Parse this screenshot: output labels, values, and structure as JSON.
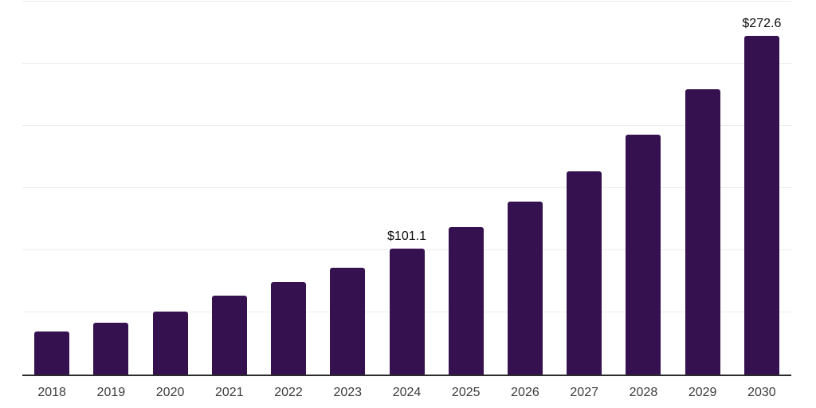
{
  "chart_data": {
    "type": "bar",
    "title": "",
    "xlabel": "",
    "ylabel": "",
    "categories": [
      "2018",
      "2019",
      "2020",
      "2021",
      "2022",
      "2023",
      "2024",
      "2025",
      "2026",
      "2027",
      "2028",
      "2029",
      "2030"
    ],
    "values": [
      34.6,
      41.6,
      50.6,
      63.4,
      74.3,
      85.8,
      101.1,
      118.5,
      139.0,
      163.3,
      192.8,
      229.3,
      272.6
    ],
    "data_labels": {
      "2024": "$101.1",
      "2030": "$272.6"
    },
    "ylim": [
      0,
      300
    ],
    "gridline_step": 50,
    "grid": "horizontal",
    "legend_position": "none",
    "colors": {
      "bar": "#361150",
      "axis_line": "#2b2b2b",
      "gridline": "#ededed",
      "value_label": "#0d0d0d",
      "tick_label": "#3c3c3c"
    }
  }
}
